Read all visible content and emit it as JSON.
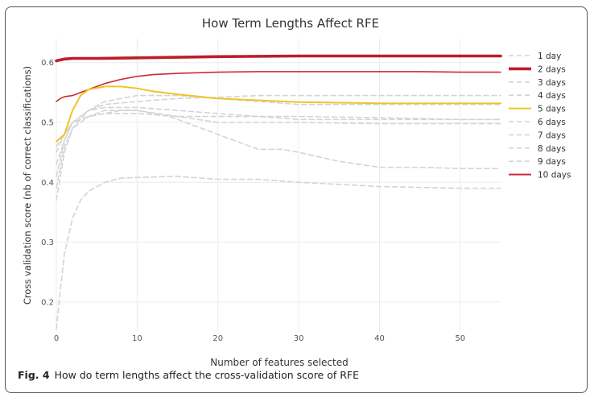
{
  "caption": {
    "label": "Fig. 4",
    "text": "How do term lengths affect the cross-validation score of RFE"
  },
  "chart_data": {
    "type": "line",
    "title": "How Term Lengths Affect RFE",
    "xlabel": "Number of features selected",
    "ylabel": "Cross validation score (nb of correct classifications)",
    "xlim": [
      0,
      55
    ],
    "ylim": [
      0.15,
      0.64
    ],
    "xticks": [
      0,
      10,
      20,
      30,
      40,
      50
    ],
    "yticks": [
      0.2,
      0.3,
      0.4,
      0.5,
      0.6
    ],
    "ytick_labels": [
      "0.2",
      "0.3",
      "0.4",
      "0.5",
      "0.6"
    ],
    "grid": true,
    "legend_position": "right",
    "series": [
      {
        "name": "1 day",
        "color": "#d4d4d4",
        "dash": true,
        "highlight": false,
        "x": [
          0,
          0.5,
          1,
          2,
          3,
          4,
          6,
          8,
          10,
          15,
          20,
          25,
          30,
          40,
          50,
          55
        ],
        "y": [
          0.155,
          0.22,
          0.28,
          0.34,
          0.37,
          0.385,
          0.4,
          0.407,
          0.408,
          0.41,
          0.405,
          0.405,
          0.4,
          0.393,
          0.39,
          0.39
        ]
      },
      {
        "name": "2 days",
        "color": "#bb1e28",
        "dash": false,
        "highlight": true,
        "x": [
          0,
          1,
          2,
          5,
          10,
          20,
          30,
          40,
          50,
          55
        ],
        "y": [
          0.603,
          0.606,
          0.607,
          0.607,
          0.608,
          0.61,
          0.611,
          0.611,
          0.611,
          0.611
        ]
      },
      {
        "name": "3 days",
        "color": "#d4d4d4",
        "dash": true,
        "highlight": false,
        "x": [
          0,
          1,
          2,
          4,
          6,
          10,
          15,
          20,
          25,
          30,
          40,
          50,
          55
        ],
        "y": [
          0.45,
          0.48,
          0.5,
          0.52,
          0.53,
          0.535,
          0.54,
          0.542,
          0.545,
          0.545,
          0.545,
          0.545,
          0.545
        ]
      },
      {
        "name": "4 days",
        "color": "#d4d4d4",
        "dash": true,
        "highlight": false,
        "x": [
          0,
          1,
          2,
          4,
          6,
          10,
          15,
          20,
          25,
          30,
          40,
          50,
          55
        ],
        "y": [
          0.41,
          0.47,
          0.5,
          0.52,
          0.525,
          0.525,
          0.52,
          0.515,
          0.51,
          0.505,
          0.505,
          0.505,
          0.505
        ]
      },
      {
        "name": "5 days",
        "color": "#f0c428",
        "dash": false,
        "highlight": true,
        "x": [
          0,
          1,
          2,
          3,
          4,
          6,
          8,
          10,
          12,
          15,
          20,
          25,
          30,
          40,
          50,
          55
        ],
        "y": [
          0.468,
          0.48,
          0.52,
          0.545,
          0.555,
          0.56,
          0.56,
          0.557,
          0.552,
          0.547,
          0.54,
          0.537,
          0.534,
          0.532,
          0.532,
          0.532
        ]
      },
      {
        "name": "6 days",
        "color": "#d4d4d4",
        "dash": true,
        "highlight": false,
        "x": [
          0,
          1,
          2,
          4,
          6,
          10,
          15,
          20,
          25,
          30,
          40,
          50,
          55
        ],
        "y": [
          0.37,
          0.45,
          0.49,
          0.52,
          0.535,
          0.545,
          0.545,
          0.54,
          0.535,
          0.53,
          0.53,
          0.53,
          0.53
        ]
      },
      {
        "name": "7 days",
        "color": "#d4d4d4",
        "dash": true,
        "highlight": false,
        "x": [
          0,
          1,
          2,
          4,
          6,
          10,
          15,
          20,
          25,
          30,
          40,
          50,
          55
        ],
        "y": [
          0.46,
          0.48,
          0.5,
          0.51,
          0.515,
          0.515,
          0.51,
          0.51,
          0.51,
          0.51,
          0.508,
          0.505,
          0.505
        ]
      },
      {
        "name": "8 days",
        "color": "#d4d4d4",
        "dash": true,
        "highlight": false,
        "x": [
          0,
          1,
          2,
          4,
          6,
          10,
          15,
          20,
          25,
          30,
          40,
          50,
          55
        ],
        "y": [
          0.39,
          0.46,
          0.49,
          0.51,
          0.52,
          0.52,
          0.51,
          0.5,
          0.5,
          0.5,
          0.498,
          0.498,
          0.498
        ]
      },
      {
        "name": "9 days",
        "color": "#d4d4d4",
        "dash": true,
        "highlight": false,
        "x": [
          0,
          1,
          2,
          4,
          6,
          8,
          10,
          14,
          18,
          22,
          25,
          28,
          30,
          35,
          40,
          45,
          50,
          55
        ],
        "y": [
          0.43,
          0.47,
          0.5,
          0.51,
          0.515,
          0.52,
          0.52,
          0.51,
          0.49,
          0.47,
          0.455,
          0.455,
          0.45,
          0.435,
          0.425,
          0.425,
          0.423,
          0.423
        ]
      },
      {
        "name": "10 days",
        "color": "#cc2a36",
        "dash": false,
        "highlight": false,
        "x": [
          0,
          0.5,
          1,
          2,
          3,
          4,
          6,
          8,
          10,
          12,
          15,
          20,
          25,
          30,
          35,
          40,
          45,
          50,
          55
        ],
        "y": [
          0.535,
          0.54,
          0.543,
          0.545,
          0.55,
          0.555,
          0.565,
          0.572,
          0.577,
          0.58,
          0.582,
          0.584,
          0.585,
          0.585,
          0.585,
          0.585,
          0.585,
          0.584,
          0.584
        ]
      }
    ]
  }
}
